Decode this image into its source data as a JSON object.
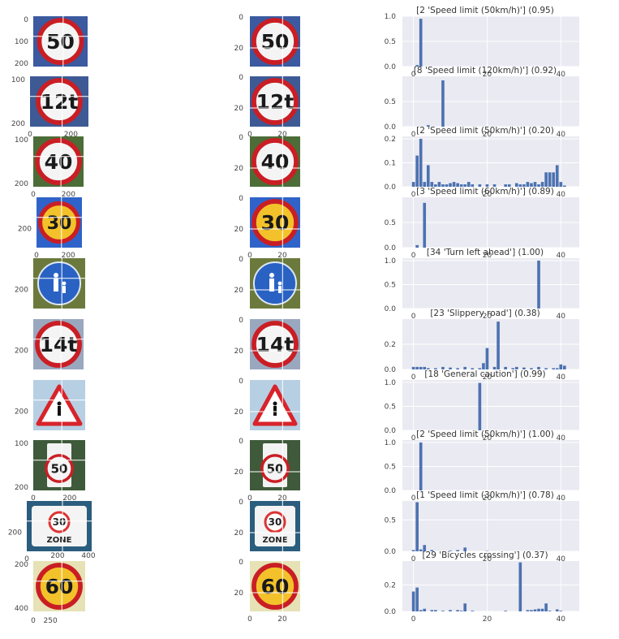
{
  "colors": {
    "axes_bg": "#eaeaf2",
    "grid": "#ffffff",
    "bar": "#4c72b0"
  },
  "image_panels": [
    {
      "kind": "image",
      "sign": "speed-50",
      "ylabels": [
        "0",
        "100",
        "200"
      ],
      "xlabels": []
    },
    {
      "kind": "image",
      "sign": "speed-12t",
      "ylabels": [
        "100",
        "200"
      ],
      "xlabels": [
        "0",
        "200"
      ]
    },
    {
      "kind": "image",
      "sign": "speed-40-bent",
      "ylabels": [
        "100",
        "200"
      ],
      "xlabels": [
        "0",
        "200"
      ]
    },
    {
      "kind": "image",
      "sign": "speed-30-yellow",
      "ylabels": [
        "200"
      ],
      "xlabels": [
        "0",
        "200"
      ]
    },
    {
      "kind": "image",
      "sign": "pedestrian-blue",
      "ylabels": [
        "200"
      ],
      "xlabels": []
    },
    {
      "kind": "image",
      "sign": "speed-14t",
      "ylabels": [
        "200"
      ],
      "xlabels": []
    },
    {
      "kind": "image",
      "sign": "pedestrian-triangle",
      "ylabels": [
        "200"
      ],
      "xlabels": []
    },
    {
      "kind": "image",
      "sign": "speed-50-rect",
      "ylabels": [
        "100",
        "200"
      ],
      "xlabels": [
        "0",
        "200"
      ]
    },
    {
      "kind": "image",
      "sign": "zone-30",
      "ylabels": [
        "200"
      ],
      "xlabels": [
        "0"
      ]
    },
    {
      "kind": "image",
      "sign": "speed-60-yellow",
      "ylabels": [
        "200",
        "400"
      ],
      "xlabels": [
        "0",
        "250",
        "200",
        "400"
      ]
    }
  ],
  "small_panels": [
    {
      "ylabels": [
        "0",
        "20"
      ],
      "xlabels": []
    },
    {
      "ylabels": [
        "0",
        "20"
      ],
      "xlabels": [
        "0",
        "20"
      ]
    },
    {
      "ylabels": [
        "0",
        "20"
      ],
      "xlabels": []
    },
    {
      "ylabels": [
        "0",
        "20"
      ],
      "xlabels": [
        "0",
        "20"
      ]
    },
    {
      "ylabels": [
        "0",
        "20"
      ],
      "xlabels": []
    },
    {
      "ylabels": [
        "0",
        "20"
      ],
      "xlabels": []
    },
    {
      "ylabels": [
        "0",
        "20"
      ],
      "xlabels": []
    },
    {
      "ylabels": [
        "0",
        "20"
      ],
      "xlabels": [
        "0",
        "20"
      ]
    },
    {
      "ylabels": [
        "0",
        "20"
      ],
      "xlabels": []
    },
    {
      "ylabels": [
        "0",
        "20"
      ],
      "xlabels": [
        "0",
        "20"
      ]
    }
  ],
  "chart_data": [
    {
      "type": "bar",
      "title": "[2 'Speed limit (50km/h)'] (0.95)",
      "ylim": [
        0,
        1.0
      ],
      "yticks": [
        "0.0",
        "0.5",
        "1.0"
      ],
      "xlim": [
        -3,
        45
      ],
      "xticks": [
        0,
        20,
        40
      ],
      "bars": [
        [
          1,
          0.03
        ],
        [
          2,
          0.95
        ]
      ]
    },
    {
      "type": "bar",
      "title": "[8 'Speed limit (120km/h)'] (0.92)",
      "ylim": [
        0,
        1.0
      ],
      "yticks": [
        "0.0",
        "0.5"
      ],
      "xlim": [
        -3,
        45
      ],
      "xticks": [
        0,
        20,
        40
      ],
      "bars": [
        [
          4,
          0.03
        ],
        [
          8,
          0.92
        ]
      ]
    },
    {
      "type": "bar",
      "title": "[2 'Speed limit (50km/h)'] (0.20)",
      "ylim": [
        0,
        0.21
      ],
      "yticks": [
        "0.0",
        "0.1",
        "0.2"
      ],
      "xlim": [
        -3,
        45
      ],
      "xticks": [
        0,
        20,
        40
      ],
      "bars": [
        [
          0,
          0.02
        ],
        [
          1,
          0.13
        ],
        [
          2,
          0.2
        ],
        [
          3,
          0.02
        ],
        [
          4,
          0.09
        ],
        [
          5,
          0.02
        ],
        [
          6,
          0.01
        ],
        [
          7,
          0.02
        ],
        [
          8,
          0.01
        ],
        [
          9,
          0.01
        ],
        [
          10,
          0.015
        ],
        [
          11,
          0.02
        ],
        [
          12,
          0.015
        ],
        [
          13,
          0.01
        ],
        [
          14,
          0.01
        ],
        [
          15,
          0.02
        ],
        [
          16,
          0.01
        ],
        [
          18,
          0.01
        ],
        [
          20,
          0.01
        ],
        [
          22,
          0.01
        ],
        [
          25,
          0.01
        ],
        [
          26,
          0.01
        ],
        [
          28,
          0.015
        ],
        [
          29,
          0.01
        ],
        [
          30,
          0.01
        ],
        [
          31,
          0.02
        ],
        [
          32,
          0.015
        ],
        [
          33,
          0.02
        ],
        [
          34,
          0.01
        ],
        [
          35,
          0.02
        ],
        [
          36,
          0.06
        ],
        [
          37,
          0.06
        ],
        [
          38,
          0.06
        ],
        [
          39,
          0.09
        ],
        [
          40,
          0.02
        ],
        [
          41,
          0.005
        ]
      ]
    },
    {
      "type": "bar",
      "title": "[3 'Speed limit (60km/h)'] (0.89)",
      "ylim": [
        0,
        1.0
      ],
      "yticks": [
        "0.0",
        "0.5"
      ],
      "xlim": [
        -3,
        45
      ],
      "xticks": [
        0,
        20,
        40
      ],
      "bars": [
        [
          1,
          0.05
        ],
        [
          3,
          0.89
        ]
      ]
    },
    {
      "type": "bar",
      "title": "[34 'Turn left ahead'] (1.00)",
      "ylim": [
        0,
        1.05
      ],
      "yticks": [
        "0.0",
        "0.5",
        "1.0"
      ],
      "xlim": [
        -3,
        45
      ],
      "xticks": [
        0,
        20,
        40
      ],
      "bars": [
        [
          34,
          1.0
        ]
      ]
    },
    {
      "type": "bar",
      "title": "[23 'Slippery road'] (0.38)",
      "ylim": [
        0,
        0.4
      ],
      "yticks": [
        "0.0",
        "0.2"
      ],
      "xlim": [
        -3,
        45
      ],
      "xticks": [
        0,
        20,
        40
      ],
      "bars": [
        [
          0,
          0.02
        ],
        [
          1,
          0.02
        ],
        [
          2,
          0.02
        ],
        [
          3,
          0.02
        ],
        [
          4,
          0.01
        ],
        [
          6,
          0.01
        ],
        [
          8,
          0.02
        ],
        [
          10,
          0.015
        ],
        [
          12,
          0.01
        ],
        [
          14,
          0.02
        ],
        [
          16,
          0.01
        ],
        [
          18,
          0.01
        ],
        [
          19,
          0.05
        ],
        [
          20,
          0.17
        ],
        [
          22,
          0.02
        ],
        [
          23,
          0.38
        ],
        [
          25,
          0.02
        ],
        [
          27,
          0.01
        ],
        [
          28,
          0.02
        ],
        [
          30,
          0.015
        ],
        [
          32,
          0.01
        ],
        [
          34,
          0.02
        ],
        [
          36,
          0.01
        ],
        [
          38,
          0.01
        ],
        [
          39,
          0.01
        ],
        [
          40,
          0.04
        ],
        [
          41,
          0.03
        ]
      ]
    },
    {
      "type": "bar",
      "title": "[18 'General caution'] (0.99)",
      "ylim": [
        0,
        1.05
      ],
      "yticks": [
        "0.0",
        "0.5",
        "1.0"
      ],
      "xlim": [
        -3,
        45
      ],
      "xticks": [
        0,
        20,
        40
      ],
      "bars": [
        [
          18,
          0.99
        ]
      ]
    },
    {
      "type": "bar",
      "title": "[2 'Speed limit (50km/h)'] (1.00)",
      "ylim": [
        0,
        1.05
      ],
      "yticks": [
        "0.0",
        "0.5",
        "1.0"
      ],
      "xlim": [
        -3,
        45
      ],
      "xticks": [
        0,
        20,
        40
      ],
      "bars": [
        [
          2,
          1.0
        ]
      ]
    },
    {
      "type": "bar",
      "title": "[1 'Speed limit (30km/h)'] (0.78)",
      "ylim": [
        0,
        0.8
      ],
      "yticks": [
        "0.0",
        "0.5"
      ],
      "xlim": [
        -3,
        45
      ],
      "xticks": [
        0,
        20,
        40
      ],
      "bars": [
        [
          0,
          0.02
        ],
        [
          1,
          0.78
        ],
        [
          2,
          0.03
        ],
        [
          3,
          0.1
        ],
        [
          5,
          0.02
        ],
        [
          10,
          0.01
        ],
        [
          12,
          0.02
        ],
        [
          14,
          0.06
        ],
        [
          20,
          0.005
        ]
      ]
    },
    {
      "type": "bar",
      "title": "[29 'Bicycles crossing'] (0.37)",
      "ylim": [
        0,
        0.38
      ],
      "yticks": [
        "0.0",
        "0.2"
      ],
      "xlim": [
        -3,
        45
      ],
      "xticks": [
        0,
        20,
        40
      ],
      "xlabels_shown": true,
      "bars": [
        [
          0,
          0.15
        ],
        [
          1,
          0.18
        ],
        [
          2,
          0.01
        ],
        [
          3,
          0.02
        ],
        [
          5,
          0.01
        ],
        [
          6,
          0.01
        ],
        [
          8,
          0.005
        ],
        [
          10,
          0.01
        ],
        [
          12,
          0.01
        ],
        [
          13,
          0.005
        ],
        [
          14,
          0.06
        ],
        [
          16,
          0.005
        ],
        [
          25,
          0.005
        ],
        [
          29,
          0.37
        ],
        [
          31,
          0.01
        ],
        [
          32,
          0.01
        ],
        [
          33,
          0.015
        ],
        [
          34,
          0.02
        ],
        [
          35,
          0.02
        ],
        [
          36,
          0.06
        ],
        [
          37,
          0.005
        ],
        [
          39,
          0.015
        ],
        [
          40,
          0.005
        ]
      ]
    }
  ]
}
